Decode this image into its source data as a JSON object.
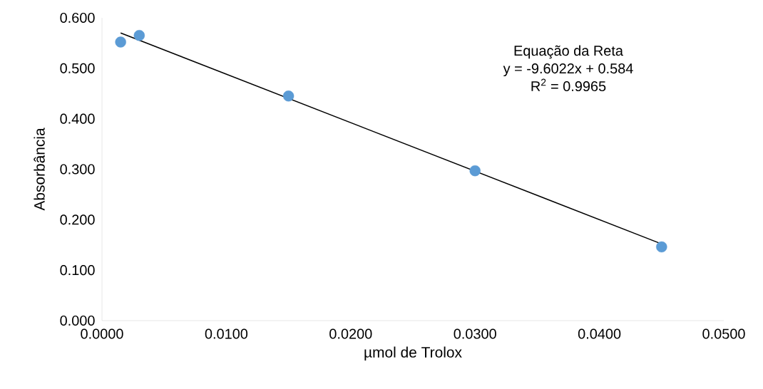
{
  "chart_data": {
    "type": "scatter",
    "xlabel": "µmol de Trolox",
    "ylabel": "Absorbância",
    "xlim": [
      0,
      0.05
    ],
    "ylim": [
      0,
      0.6
    ],
    "xticks": [
      {
        "value": 0,
        "label": "0.0000"
      },
      {
        "value": 0.01,
        "label": "0.0100"
      },
      {
        "value": 0.02,
        "label": "0.0200"
      },
      {
        "value": 0.03,
        "label": "0.0300"
      },
      {
        "value": 0.04,
        "label": "0.0400"
      },
      {
        "value": 0.05,
        "label": "0.0500"
      }
    ],
    "yticks": [
      {
        "value": 0,
        "label": "0.000"
      },
      {
        "value": 0.1,
        "label": "0.100"
      },
      {
        "value": 0.2,
        "label": "0.200"
      },
      {
        "value": 0.3,
        "label": "0.300"
      },
      {
        "value": 0.4,
        "label": "0.400"
      },
      {
        "value": 0.5,
        "label": "0.500"
      },
      {
        "value": 0.6,
        "label": "0.600"
      }
    ],
    "grid": false,
    "series": [
      {
        "type": "scatter",
        "color": "#5b9bd5",
        "marker": "circle",
        "x": [
          0.0015,
          0.003,
          0.015,
          0.03,
          0.045
        ],
        "values": [
          0.552,
          0.565,
          0.445,
          0.297,
          0.146
        ]
      },
      {
        "type": "line",
        "color": "#000000",
        "marker": "none",
        "x": [
          0.0015,
          0.045
        ],
        "values": [
          0.57,
          0.152
        ]
      }
    ],
    "annotations": [
      "Equação da Reta",
      "y = -9.6022x + 0.584",
      "R$^{2}$ = 0.9965"
    ]
  }
}
